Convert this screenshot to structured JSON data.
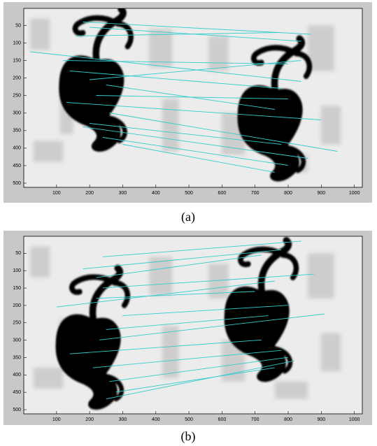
{
  "panels": [
    {
      "caption": "(a)",
      "xlim": [
        1,
        1024
      ],
      "ylim": [
        1,
        512
      ],
      "xticks": [
        100,
        200,
        300,
        400,
        500,
        600,
        700,
        800,
        900,
        1000
      ],
      "yticks": [
        50,
        100,
        150,
        200,
        250,
        300,
        350,
        400,
        450,
        500
      ]
    },
    {
      "caption": "(b)",
      "xlim": [
        1,
        1024
      ],
      "ylim": [
        1,
        512
      ],
      "xticks": [
        100,
        200,
        300,
        400,
        500,
        600,
        700,
        800,
        900,
        1000
      ],
      "yticks": [
        50,
        100,
        150,
        200,
        250,
        300,
        350,
        400,
        450,
        500
      ]
    }
  ]
}
